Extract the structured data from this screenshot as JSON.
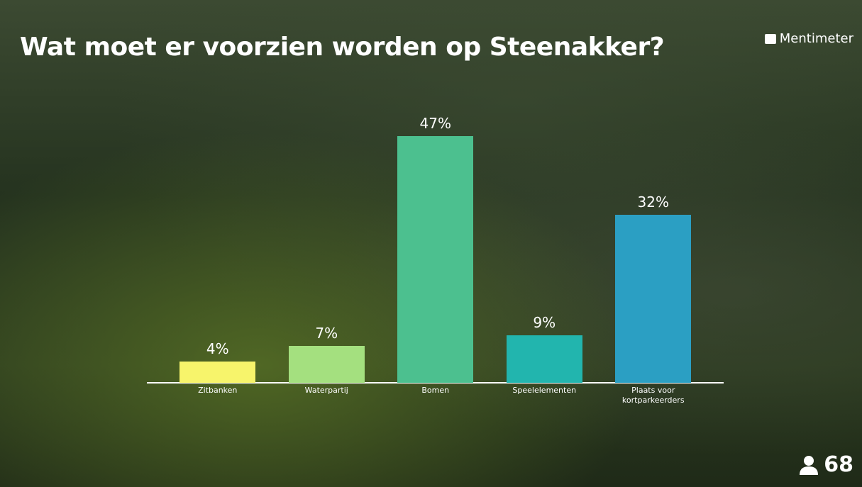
{
  "brand": "Mentimeter",
  "participants": 68,
  "chart_data": {
    "type": "bar",
    "title": "Wat moet er voorzien worden op Steenakker?",
    "categories": [
      "Zitbanken",
      "Waterpartij",
      "Bomen",
      "Speelelementen",
      "Plaats voor kortparkeerders"
    ],
    "values": [
      4,
      7,
      47,
      9,
      32
    ],
    "value_labels": [
      "4%",
      "7%",
      "47%",
      "9%",
      "32%"
    ],
    "colors": [
      "#f7f46b",
      "#a4e07f",
      "#4cc08f",
      "#22b5ae",
      "#2b9fc3"
    ]
  }
}
